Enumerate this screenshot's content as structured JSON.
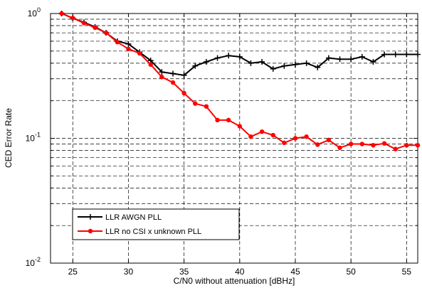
{
  "chart_data": {
    "type": "line",
    "xlabel": "C/N0 without attenuation [dBHz]",
    "ylabel": "CED Error Rate",
    "xlim": [
      23,
      56
    ],
    "ylim": [
      0.01,
      1
    ],
    "yscale": "log",
    "grid": true,
    "legend_position": "bottom-left",
    "x_ticks": [
      25,
      30,
      35,
      40,
      45,
      50,
      55
    ],
    "x_tick_labels": [
      "25",
      "30",
      "35",
      "40",
      "45",
      "50",
      "55"
    ],
    "y_tick_labels": [
      {
        "base": "10",
        "exp": "0",
        "value": 1
      },
      {
        "base": "10",
        "exp": "-1",
        "value": 0.1
      },
      {
        "base": "10",
        "exp": "-2",
        "value": 0.01
      }
    ],
    "series": [
      {
        "name": "LLR AWGN PLL",
        "color": "#000000",
        "marker": "plus",
        "x": [
          24,
          25,
          26,
          27,
          28,
          29,
          30,
          31,
          32,
          33,
          34,
          35,
          36,
          37,
          38,
          39,
          40,
          41,
          42,
          43,
          44,
          45,
          46,
          47,
          48,
          49,
          50,
          51,
          52,
          53,
          54,
          55,
          56
        ],
        "values": [
          1.0,
          0.92,
          0.85,
          0.78,
          0.7,
          0.6,
          0.57,
          0.49,
          0.42,
          0.34,
          0.33,
          0.32,
          0.38,
          0.41,
          0.44,
          0.46,
          0.45,
          0.4,
          0.41,
          0.36,
          0.38,
          0.39,
          0.4,
          0.37,
          0.44,
          0.43,
          0.43,
          0.45,
          0.41,
          0.47,
          0.47,
          0.47,
          0.47
        ]
      },
      {
        "name": "LLR no CSI x unknown PLL",
        "color": "#ff0000",
        "marker": "dot",
        "x": [
          24,
          25,
          26,
          27,
          28,
          29,
          30,
          31,
          32,
          33,
          34,
          35,
          36,
          37,
          38,
          39,
          40,
          41,
          42,
          43,
          44,
          45,
          46,
          47,
          48,
          49,
          50,
          51,
          52,
          53,
          54,
          55,
          56
        ],
        "values": [
          1.0,
          0.92,
          0.84,
          0.77,
          0.7,
          0.59,
          0.52,
          0.48,
          0.39,
          0.31,
          0.28,
          0.23,
          0.19,
          0.18,
          0.14,
          0.14,
          0.125,
          0.103,
          0.113,
          0.106,
          0.092,
          0.1,
          0.103,
          0.089,
          0.097,
          0.084,
          0.09,
          0.09,
          0.088,
          0.091,
          0.082,
          0.088,
          0.088
        ]
      }
    ]
  }
}
